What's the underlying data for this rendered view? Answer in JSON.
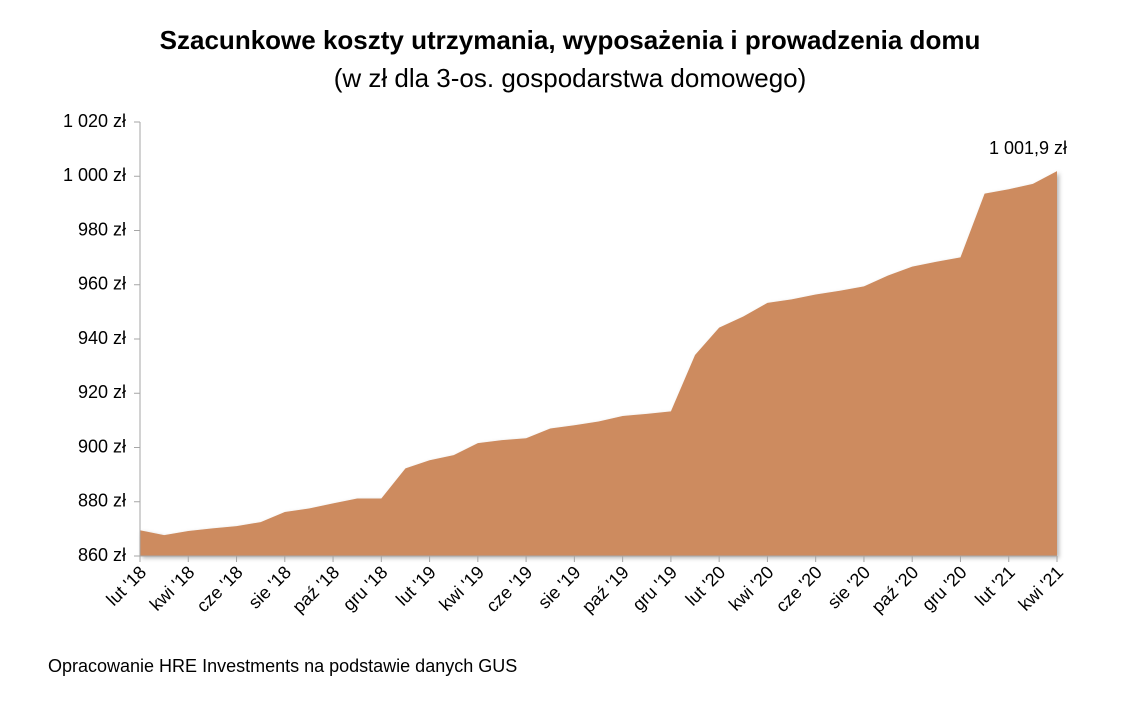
{
  "chart_data": {
    "type": "area",
    "title": "Szacunkowe koszty utrzymania, wyposażenia i prowadzenia domu",
    "subtitle": "(w zł dla 3-os. gospodarstwa domowego)",
    "source": "Opracowanie HRE Investments na podstawie danych GUS",
    "categories": [
      "lut '18",
      null,
      "kwi '18",
      null,
      "cze '18",
      null,
      "sie '18",
      null,
      "paź '18",
      null,
      "gru '18",
      null,
      "lut '19",
      null,
      "kwi '19",
      null,
      "cze '19",
      null,
      "sie '19",
      null,
      "paź '19",
      null,
      "gru '19",
      null,
      "lut '20",
      null,
      "kwi '20",
      null,
      "cze '20",
      null,
      "sie '20",
      null,
      "paź '20",
      null,
      "gru '20",
      null,
      "lut '21",
      null,
      "kwi '21"
    ],
    "values": [
      869.5,
      867.7,
      869.2,
      870.2,
      871,
      872.5,
      876.2,
      877.5,
      879.4,
      881.2,
      881.2,
      892.3,
      895.3,
      897.2,
      901.6,
      902.7,
      903.4,
      907,
      908.2,
      909.6,
      911.6,
      912.4,
      913.3,
      934.1,
      944.2,
      948.3,
      953.3,
      954.6,
      956.4,
      957.8,
      959.4,
      963.4,
      966.7,
      968.5,
      970.1,
      993.6,
      995.2,
      997.2,
      1001.9
    ],
    "value_labels": [
      null,
      null,
      null,
      null,
      null,
      null,
      null,
      null,
      null,
      null,
      null,
      null,
      null,
      null,
      null,
      null,
      null,
      null,
      null,
      null,
      null,
      null,
      null,
      null,
      null,
      null,
      null,
      null,
      null,
      null,
      null,
      null,
      null,
      null,
      null,
      null,
      null,
      null,
      "1 001,9 zł"
    ],
    "color": "#cd8b5e",
    "ylim": [
      860,
      1020
    ],
    "yticks": [
      {
        "value": 860,
        "label": "860 zł"
      },
      {
        "value": 880,
        "label": "880 zł"
      },
      {
        "value": 900,
        "label": "900 zł"
      },
      {
        "value": 920,
        "label": "920 zł"
      },
      {
        "value": 940,
        "label": "940 zł"
      },
      {
        "value": 960,
        "label": "960 zł"
      },
      {
        "value": 980,
        "label": "980 zł"
      },
      {
        "value": 1000,
        "label": "1 000 zł"
      },
      {
        "value": 1020,
        "label": "1 020 zł"
      }
    ],
    "grid": false
  }
}
